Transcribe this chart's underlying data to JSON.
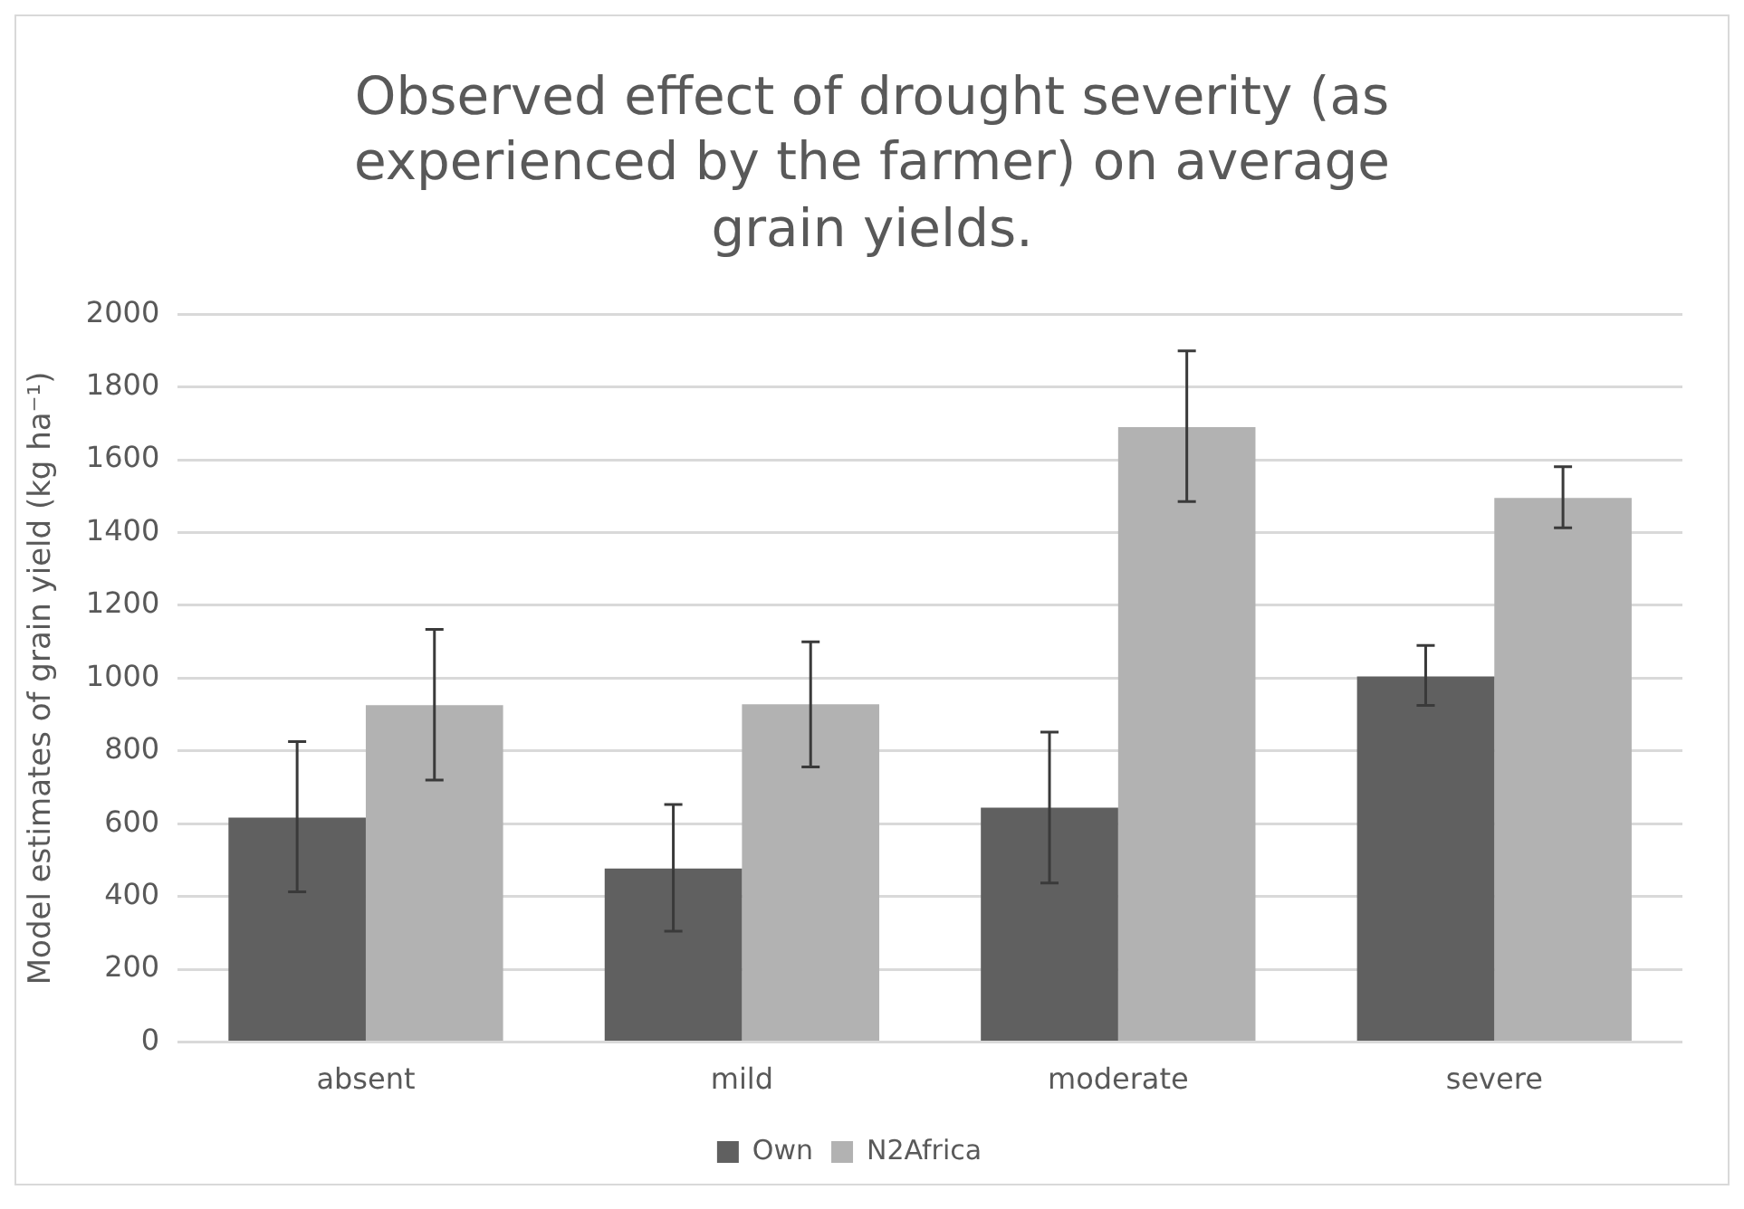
{
  "chart_data": {
    "type": "bar",
    "title": "Observed effect of drought severity (as experienced by the farmer) on average grain yields.",
    "ylabel": "Model estimates of grain yield (kg ha⁻¹)",
    "categories": [
      "absent",
      "mild",
      "moderate",
      "severe"
    ],
    "series": [
      {
        "name": "Own",
        "color": "#606060",
        "values": [
          617,
          477,
          644,
          1005
        ],
        "errors": [
          [
            413,
            826
          ],
          [
            305,
            653
          ],
          [
            437,
            852
          ],
          [
            925,
            1090
          ]
        ]
      },
      {
        "name": "N2Africa",
        "color": "#b2b2b2",
        "values": [
          926,
          928,
          1690,
          1495
        ],
        "errors": [
          [
            720,
            1134
          ],
          [
            756,
            1100
          ],
          [
            1485,
            1899
          ],
          [
            1413,
            1581
          ]
        ]
      }
    ],
    "ylim": [
      0,
      2000
    ],
    "yticks": [
      0,
      200,
      400,
      600,
      800,
      1000,
      1200,
      1400,
      1600,
      1800,
      2000
    ],
    "grid": "y",
    "legend": "bottom"
  }
}
